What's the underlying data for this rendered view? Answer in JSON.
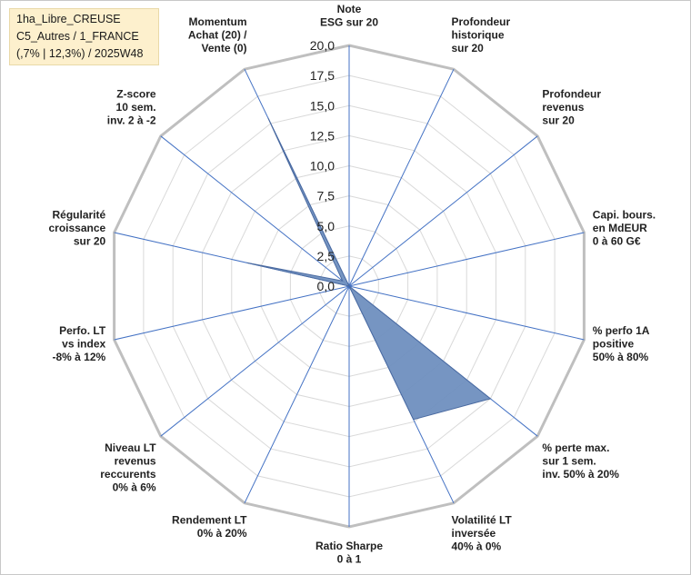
{
  "header": {
    "lines": [
      "1ha_Libre_CREUSE",
      "C5_Autres / 1_FRANCE",
      "(,7% | 12,3%) / 2025W48"
    ]
  },
  "chart_data": {
    "type": "radar",
    "rmin": 0,
    "rmax": 20,
    "tick_step": 2.5,
    "tick_labels": [
      "0,0",
      "2,5",
      "5,0",
      "7,5",
      "10,0",
      "12,5",
      "15,0",
      "17,5",
      "20,0"
    ],
    "axes": [
      "Note ESG sur 20",
      "Profondeur historique sur 20",
      "Profondeur revenus sur 20",
      "Capi. bours. en MdEUR 0 à 60 G€",
      "% perfo 1A positive 50% à 80%",
      "% perte max. sur 1 sem. inv. 50% à 20%",
      "Volatilité LT inversée 40% à 0%",
      "Ratio Sharpe 0 à 1",
      "Rendement LT 0% à 20%",
      "Niveau LT revenus reccurents 0% à 6%",
      "Perfo. LT vs index -8% à 12%",
      "Régularité croissance sur 20",
      "Z-score 10 sem. inv. 2 à -2",
      "Momentum Achat (20) / Vente (0)"
    ],
    "axis_label_lines": [
      [
        "Note",
        "ESG sur 20"
      ],
      [
        "Profondeur",
        "historique",
        "sur 20"
      ],
      [
        "Profondeur",
        "revenus",
        "sur 20"
      ],
      [
        "Capi. bours.",
        "en MdEUR",
        "0 à 60 G€"
      ],
      [
        "% perfo 1A",
        "positive",
        "50% à 80%"
      ],
      [
        "% perte max.",
        "sur 1 sem.",
        "inv. 50% à 20%"
      ],
      [
        "Volatilité LT",
        "inversée",
        "40% à 0%"
      ],
      [
        "Ratio Sharpe",
        "0 à 1"
      ],
      [
        "Rendement LT",
        "0% à 20%"
      ],
      [
        "Niveau LT",
        "revenus",
        "reccurents",
        "0% à 6%"
      ],
      [
        "Perfo. LT",
        "vs index",
        "-8% à 12%"
      ],
      [
        "Régularité",
        "croissance",
        "sur 20"
      ],
      [
        "Z-score",
        "10 sem.",
        "inv. 2 à -2"
      ],
      [
        "Momentum",
        "Achat (20) /",
        "Vente (0)"
      ]
    ],
    "series": [
      {
        "values": [
          0,
          0,
          0,
          0,
          0,
          15.0,
          12.3,
          0,
          0,
          0,
          0,
          8.7,
          0.7,
          15.5
        ]
      }
    ],
    "colors": {
      "fill": "#6f8fbf",
      "stroke": "#4a6aa0",
      "axis": "#4472c4",
      "grid": "#d9d9d9",
      "outer": "#bfbfbf"
    }
  }
}
